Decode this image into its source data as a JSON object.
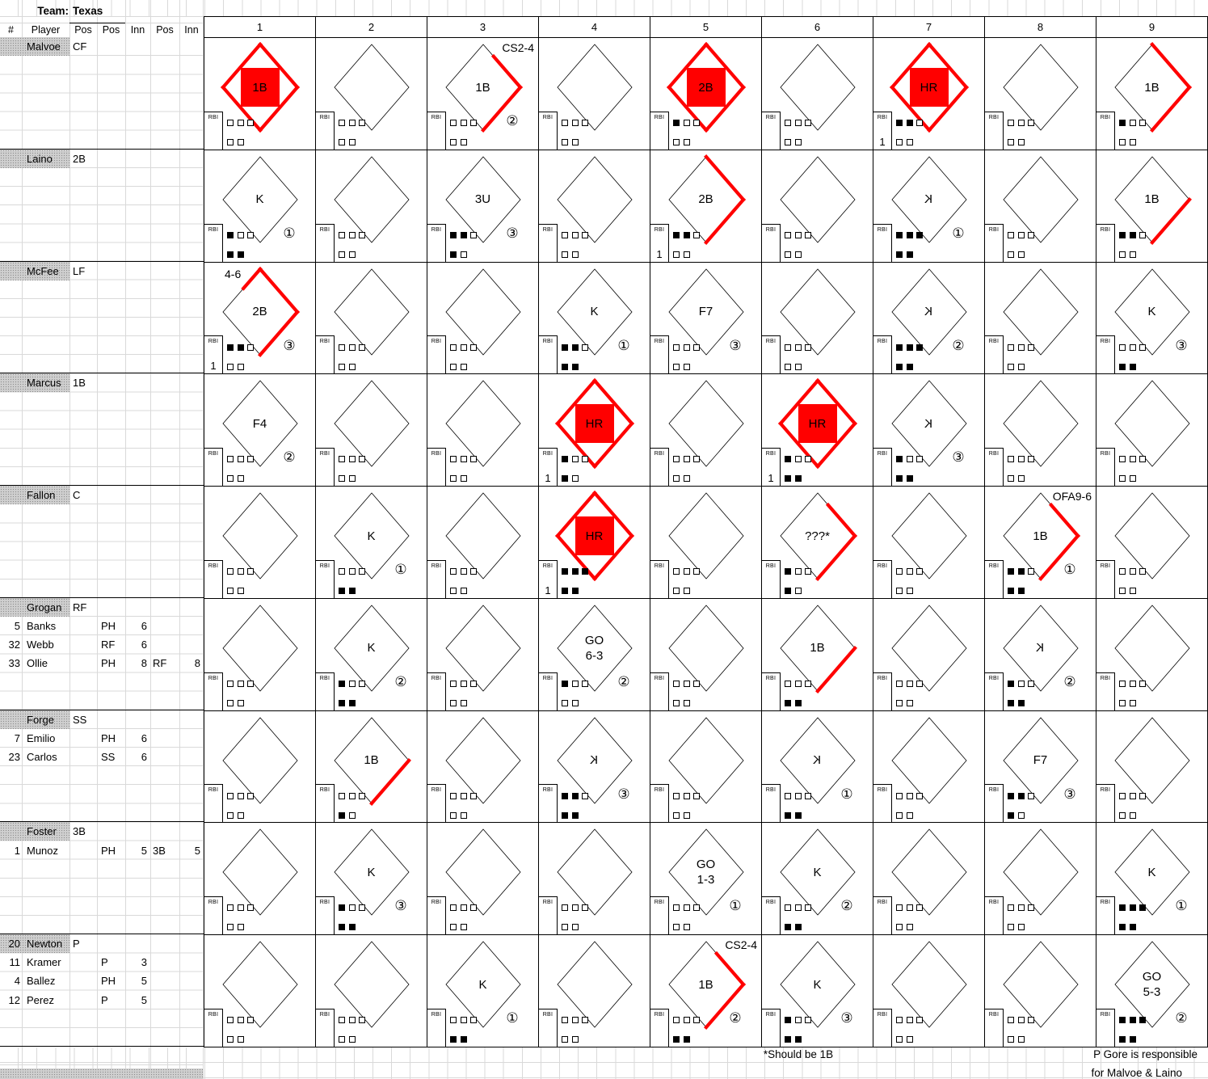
{
  "team": {
    "label": "Team:",
    "name": "Texas"
  },
  "header_columns": [
    "#",
    "Player",
    "Pos",
    "Pos",
    "Inn",
    "Pos",
    "Inn"
  ],
  "innings": [
    "1",
    "2",
    "3",
    "4",
    "5",
    "6",
    "7",
    "8",
    "9"
  ],
  "rbi_label": "RBI",
  "colors": {
    "red": "#ff0000",
    "faint_grid": "#d9d9d9",
    "name_fill": "#cfcfcf"
  },
  "footnotes": {
    "asterisk": "*Should be 1B",
    "resp_line1": "P Gore is responsible",
    "resp_line2": "for Malvoe & Laino"
  },
  "players": [
    {
      "num": "",
      "name": "Malvoe",
      "pos": "CF",
      "subs": [],
      "cells": [
        {
          "l": "1B",
          "a": 4,
          "f": 1
        },
        {},
        {
          "l": "1B",
          "a": 1,
          "p": 1,
          "n": "CS2-4",
          "np": "tr",
          "o": 2
        },
        {},
        {
          "l": "2B",
          "a": 4,
          "f": 1,
          "b": 1
        },
        {},
        {
          "l": "HR",
          "a": 4,
          "f": 1,
          "r": 1,
          "b": 2
        },
        {},
        {
          "l": "1B",
          "a": 2,
          "b": 1
        }
      ]
    },
    {
      "num": "",
      "name": "Laino",
      "pos": "2B",
      "subs": [],
      "cells": [
        {
          "l": "K",
          "o": 1,
          "b": 1,
          "s": 2
        },
        {},
        {
          "l": "3U",
          "o": 3,
          "b": 2,
          "s": 1
        },
        {},
        {
          "l": "2B",
          "a": 2,
          "r": 1,
          "b": 2
        },
        {},
        {
          "l": "K",
          "m": 1,
          "o": 1,
          "b": 3,
          "s": 2
        },
        {},
        {
          "l": "1B",
          "a": 1,
          "b": 2
        }
      ]
    },
    {
      "num": "",
      "name": "McFee",
      "pos": "LF",
      "subs": [],
      "cells": [
        {
          "l": "2B",
          "a": 2,
          "p": 1,
          "pf": 0.45,
          "n": "4-6",
          "np": "tl",
          "o": 3,
          "r": 1,
          "b": 2
        },
        {},
        {},
        {
          "l": "K",
          "o": 1,
          "b": 2,
          "s": 2
        },
        {
          "l": "F7",
          "o": 3
        },
        {},
        {
          "l": "K",
          "m": 1,
          "o": 2,
          "b": 3,
          "s": 2
        },
        {},
        {
          "l": "K",
          "o": 3,
          "s": 2
        }
      ]
    },
    {
      "num": "",
      "name": "Marcus",
      "pos": "1B",
      "subs": [],
      "cells": [
        {
          "l": "F4",
          "o": 2
        },
        {},
        {},
        {
          "l": "HR",
          "a": 4,
          "f": 1,
          "r": 1,
          "b": 1,
          "s": 1
        },
        {},
        {
          "l": "HR",
          "a": 4,
          "f": 1,
          "r": 1,
          "b": 1,
          "s": 2
        },
        {
          "l": "K",
          "m": 1,
          "o": 3,
          "b": 1,
          "s": 2
        },
        {},
        {}
      ]
    },
    {
      "num": "",
      "name": "Fallon",
      "pos": "C",
      "subs": [],
      "cells": [
        {},
        {
          "l": "K",
          "o": 1,
          "s": 2
        },
        {},
        {
          "l": "HR",
          "a": 4,
          "f": 1,
          "r": 1,
          "b": 3,
          "s": 2
        },
        {},
        {
          "l": "???*",
          "a": 1,
          "p": 1,
          "b": 1,
          "s": 1
        },
        {},
        {
          "l": "1B",
          "a": 1,
          "p": 1,
          "n": "OFA9-6",
          "np": "tr",
          "o": 1,
          "b": 2,
          "s": 2
        },
        {}
      ]
    },
    {
      "num": "",
      "name": "Grogan",
      "pos": "RF",
      "subs": [
        {
          "num": "5",
          "name": "Banks",
          "pos2": "PH",
          "inn": "6"
        },
        {
          "num": "32",
          "name": "Webb",
          "pos2": "RF",
          "inn": "6"
        },
        {
          "num": "33",
          "name": "Ollie",
          "pos2": "PH",
          "inn": "8",
          "pos3": "RF",
          "inn2": "8"
        }
      ],
      "cells": [
        {},
        {
          "l": "K",
          "o": 2,
          "b": 1,
          "s": 2
        },
        {},
        {
          "l": "GO\n6-3",
          "o": 2,
          "b": 1
        },
        {},
        {
          "l": "1B",
          "a": 1,
          "s": 2
        },
        {},
        {
          "l": "K",
          "m": 1,
          "o": 2,
          "b": 1,
          "s": 2
        },
        {}
      ]
    },
    {
      "num": "",
      "name": "Forge",
      "pos": "SS",
      "subs": [
        {
          "num": "7",
          "name": "Emilio",
          "pos2": "PH",
          "inn": "6"
        },
        {
          "num": "23",
          "name": "Carlos",
          "pos2": "SS",
          "inn": "6"
        }
      ],
      "cells": [
        {},
        {
          "l": "1B",
          "a": 1,
          "s": 1
        },
        {},
        {
          "l": "K",
          "m": 1,
          "o": 3,
          "b": 2,
          "s": 2
        },
        {},
        {
          "l": "K",
          "m": 1,
          "o": 1,
          "s": 2
        },
        {},
        {
          "l": "F7",
          "o": 3,
          "b": 2,
          "s": 1
        },
        {}
      ]
    },
    {
      "num": "",
      "name": "Foster",
      "pos": "3B",
      "subs": [
        {
          "num": "1",
          "name": "Munoz",
          "pos2": "PH",
          "inn": "5",
          "pos3": "3B",
          "inn2": "5"
        }
      ],
      "cells": [
        {},
        {
          "l": "K",
          "o": 3,
          "b": 1,
          "s": 2
        },
        {},
        {},
        {
          "l": "GO\n1-3",
          "o": 1
        },
        {
          "l": "K",
          "o": 2,
          "s": 2
        },
        {},
        {},
        {
          "l": "K",
          "o": 1,
          "b": 3,
          "s": 2
        }
      ]
    },
    {
      "num": "20",
      "name": "Newton",
      "pos": "P",
      "subs": [
        {
          "num": "11",
          "name": "Kramer",
          "pos2": "P",
          "inn": "3"
        },
        {
          "num": "4",
          "name": "Ballez",
          "pos2": "PH",
          "inn": "5"
        },
        {
          "num": "12",
          "name": "Perez",
          "pos2": "P",
          "inn": "5"
        }
      ],
      "cells": [
        {},
        {},
        {
          "l": "K",
          "o": 1,
          "s": 2
        },
        {},
        {
          "l": "1B",
          "a": 1,
          "p": 1,
          "n": "CS2-4",
          "np": "tr",
          "o": 2,
          "s": 2
        },
        {
          "l": "K",
          "o": 3,
          "b": 1,
          "s": 2
        },
        {},
        {},
        {
          "l": "GO\n5-3",
          "o": 2,
          "b": 3,
          "s": 2
        }
      ]
    }
  ]
}
